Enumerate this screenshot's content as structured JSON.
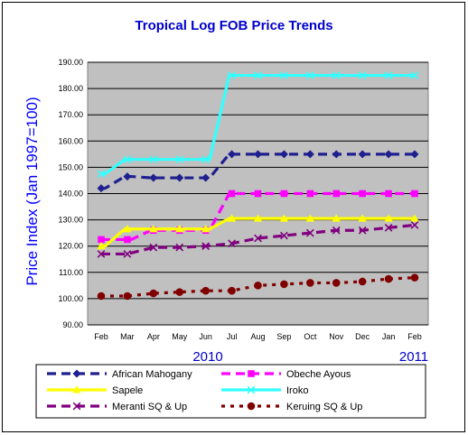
{
  "chart_data": {
    "type": "line",
    "title": "Tropical Log FOB Price Trends",
    "ylabel": "Price Index (Jan 1997=100)",
    "xlabel": "",
    "categories": [
      "Feb",
      "Mar",
      "Apr",
      "May",
      "Jun",
      "Jul",
      "Aug",
      "Sep",
      "Oct",
      "Nov",
      "Dec",
      "Jan",
      "Feb"
    ],
    "year_labels": [
      "2010",
      "2011"
    ],
    "ylim": [
      90,
      190
    ],
    "yticks": [
      "90.00",
      "100.00",
      "110.00",
      "120.00",
      "130.00",
      "140.00",
      "150.00",
      "160.00",
      "170.00",
      "180.00",
      "190.00"
    ],
    "grid": true,
    "legend_position": "bottom",
    "plot_background": "#c0c0c0",
    "series": [
      {
        "name": "African Mahogany",
        "color": "#1f1f8f",
        "dash": "dash",
        "marker": "diamond",
        "step": true,
        "values": [
          142,
          146.5,
          146,
          146,
          146,
          155,
          155,
          155,
          155,
          155,
          155,
          155,
          155
        ]
      },
      {
        "name": "Obeche Ayous",
        "color": "#ff00ff",
        "dash": "dash",
        "marker": "square",
        "step": true,
        "values": [
          122.5,
          122.5,
          126,
          126,
          126,
          140,
          140,
          140,
          140,
          140,
          140,
          140,
          140
        ]
      },
      {
        "name": "Sapele",
        "color": "#ffff00",
        "dash": "solid",
        "marker": "triangle",
        "step": true,
        "values": [
          120,
          126.5,
          126.5,
          126.5,
          126.5,
          130.5,
          130.5,
          130.5,
          130.5,
          130.5,
          130.5,
          130.5,
          130.5
        ]
      },
      {
        "name": "Iroko",
        "color": "#33ffff",
        "dash": "solid",
        "marker": "x",
        "step": true,
        "values": [
          147.5,
          153,
          153,
          153,
          153,
          185,
          185,
          185,
          185,
          185,
          185,
          185,
          185
        ]
      },
      {
        "name": "Meranti SQ & Up",
        "color": "#800080",
        "dash": "dash",
        "marker": "x",
        "step": false,
        "values": [
          117,
          117,
          119.5,
          119.5,
          120,
          121,
          123,
          124,
          125,
          126,
          126,
          127,
          128
        ]
      },
      {
        "name": "Keruing SQ & Up",
        "color": "#800000",
        "dash": "dot",
        "marker": "circle",
        "step": false,
        "values": [
          101,
          101,
          102,
          102.5,
          103,
          103,
          105,
          105.5,
          106,
          106,
          106.5,
          107.5,
          108
        ]
      }
    ]
  }
}
